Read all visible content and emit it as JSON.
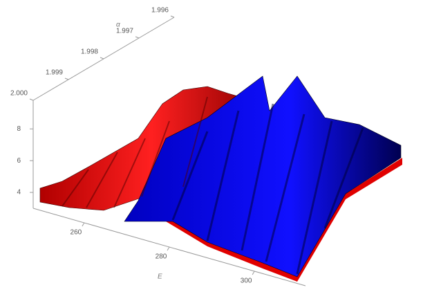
{
  "chart_data": {
    "type": "surface3d",
    "x_label": "E",
    "y_label": "α",
    "xlim": [
      248,
      312
    ],
    "xticks": [
      260,
      280,
      300
    ],
    "ylim": [
      1.996,
      2.0
    ],
    "yticks": [
      1.996,
      1.997,
      1.998,
      1.999,
      {
        "value": 2.0,
        "label": "2.000"
      }
    ],
    "zlim": [
      3,
      9.8
    ],
    "zticks": [
      4,
      6,
      8
    ],
    "colors": [
      "#e00000",
      "#0000e0"
    ]
  }
}
